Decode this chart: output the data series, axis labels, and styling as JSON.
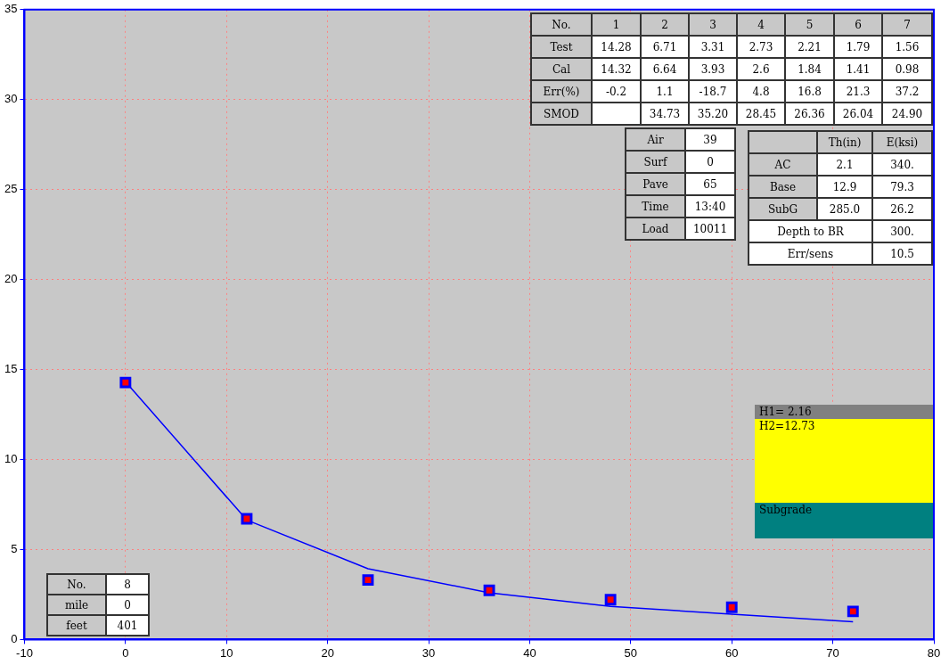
{
  "chart_data": {
    "type": "scatter",
    "x": [
      0,
      12,
      24,
      36,
      48,
      60,
      72
    ],
    "series": [
      {
        "marker": "square",
        "color": "#ff0000",
        "values": [
          14.28,
          6.71,
          3.31,
          2.73,
          2.21,
          1.79,
          1.56
        ]
      },
      {
        "type": "line",
        "marker": "none",
        "color": "#0000ff",
        "values": [
          14.32,
          6.64,
          3.93,
          2.6,
          1.84,
          1.41,
          0.98
        ]
      }
    ],
    "xlim": [
      -10,
      80
    ],
    "xticks": [
      -10,
      0,
      10,
      20,
      30,
      40,
      50,
      60,
      70,
      80
    ],
    "ylim": [
      0,
      35
    ],
    "yticks": [
      0,
      5,
      10,
      15,
      20,
      25,
      30,
      35
    ],
    "grid": true,
    "annotations": [
      "No.",
      "1",
      "2",
      "3",
      "4",
      "5",
      "6",
      "7",
      "Test",
      "14.28",
      "6.71",
      "3.31",
      "2.73",
      "2.21",
      "1.79",
      "1.56",
      "Cal",
      "14.32",
      "6.64",
      "3.93",
      "2.6",
      "1.84",
      "1.41",
      "0.98",
      "Err(%)",
      "-0.2",
      "1.1",
      "-18.7",
      "4.8",
      "16.8",
      "21.3",
      "37.2",
      "SMOD",
      "34.73",
      "35.20",
      "28.45",
      "26.36",
      "26.04",
      "24.90",
      "Air",
      "39",
      "Surf",
      "0",
      "Pave",
      "65",
      "Time",
      "13:40",
      "Load",
      "10011",
      "Th(in)",
      "E(ksi)",
      "AC",
      "2.1",
      "340.",
      "Base",
      "12.9",
      "79.3",
      "SubG",
      "285.0",
      "26.2",
      "Depth to BR",
      "300.",
      "Err/sens",
      "10.5",
      "H1= 2.16",
      "H2=12.73",
      "Subgrade",
      "No.",
      "8",
      "mile",
      "0",
      "feet",
      "401"
    ]
  }
}
